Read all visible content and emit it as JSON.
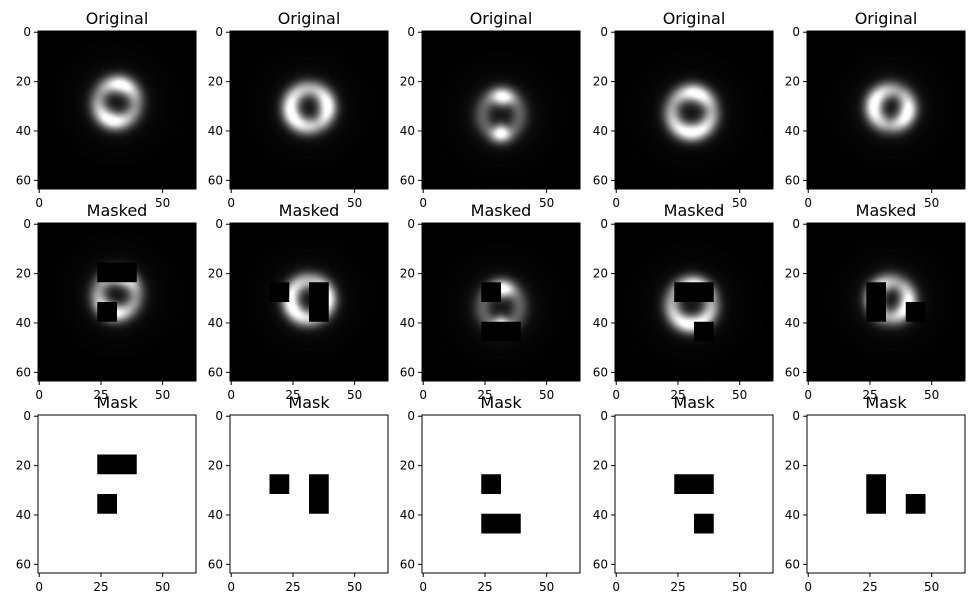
{
  "chart_data": [
    {
      "type": "heatmap",
      "row": "original",
      "title": "Original",
      "colormap": "gray",
      "xticks": [
        0,
        50
      ],
      "yticks": [
        0,
        20,
        40,
        60
      ],
      "xlim": [
        0,
        64
      ],
      "ylim": [
        64,
        0
      ],
      "ring": {
        "cx": 32,
        "cy": 29,
        "r": 7.5,
        "width": 2.5,
        "bright_arcs": [
          [
            40,
            110
          ],
          [
            210,
            290
          ]
        ],
        "contrast": 0.55
      }
    },
    {
      "type": "heatmap",
      "row": "original",
      "title": "Original",
      "colormap": "gray",
      "xticks": [
        0,
        50
      ],
      "yticks": [
        0,
        20,
        40,
        60
      ],
      "xlim": [
        0,
        64
      ],
      "ylim": [
        64,
        0
      ],
      "ring": {
        "cx": 32,
        "cy": 31,
        "r": 7.5,
        "width": 2.5,
        "bright_arcs": [
          [
            150,
            250
          ],
          [
            330,
            40
          ]
        ],
        "contrast": 0.4
      }
    },
    {
      "type": "heatmap",
      "row": "original",
      "title": "Original",
      "colormap": "gray",
      "xticks": [
        0,
        50
      ],
      "yticks": [
        0,
        20,
        40,
        60
      ],
      "xlim": [
        0,
        64
      ],
      "ylim": [
        64,
        0
      ],
      "ring": {
        "cx": 32,
        "cy": 34,
        "r": 7.5,
        "width": 2.5,
        "bright_arcs": [
          [
            60,
            110
          ],
          [
            250,
            290
          ]
        ],
        "contrast": 0.7
      }
    },
    {
      "type": "heatmap",
      "row": "original",
      "title": "Original",
      "colormap": "gray",
      "xticks": [
        0,
        50
      ],
      "yticks": [
        0,
        20,
        40,
        60
      ],
      "xlim": [
        0,
        64
      ],
      "ylim": [
        64,
        0
      ],
      "ring": {
        "cx": 31,
        "cy": 33,
        "r": 8,
        "width": 2.5,
        "bright_arcs": [
          [
            220,
            320
          ],
          [
            40,
            110
          ]
        ],
        "contrast": 0.5
      }
    },
    {
      "type": "heatmap",
      "row": "original",
      "title": "Original",
      "colormap": "gray",
      "xticks": [
        0,
        50
      ],
      "yticks": [
        0,
        20,
        40,
        60
      ],
      "xlim": [
        0,
        64
      ],
      "ylim": [
        64,
        0
      ],
      "ring": {
        "cx": 34,
        "cy": 31,
        "r": 7,
        "width": 2.5,
        "bright_arcs": [
          [
            120,
            220
          ],
          [
            300,
            20
          ]
        ],
        "contrast": 0.5
      }
    },
    {
      "type": "heatmap",
      "row": "masked",
      "title": "Masked",
      "colormap": "gray",
      "xticks": [
        0,
        25,
        50
      ],
      "yticks": [
        0,
        20,
        40,
        60
      ],
      "xlim": [
        0,
        64
      ],
      "ylim": [
        64,
        0
      ],
      "ring": {
        "cx": 32,
        "cy": 29,
        "r": 7.5,
        "width": 2.5,
        "bright_arcs": [
          [
            40,
            110
          ],
          [
            210,
            290
          ]
        ],
        "contrast": 0.55
      },
      "masked_regions": [
        [
          24,
          16,
          16,
          8
        ],
        [
          24,
          32,
          8,
          8
        ]
      ]
    },
    {
      "type": "heatmap",
      "row": "masked",
      "title": "Masked",
      "colormap": "gray",
      "xticks": [
        0,
        25,
        50
      ],
      "yticks": [
        0,
        20,
        40,
        60
      ],
      "xlim": [
        0,
        64
      ],
      "ylim": [
        64,
        0
      ],
      "ring": {
        "cx": 32,
        "cy": 31,
        "r": 7.5,
        "width": 2.5,
        "bright_arcs": [
          [
            150,
            250
          ],
          [
            330,
            40
          ]
        ],
        "contrast": 0.4
      },
      "masked_regions": [
        [
          16,
          24,
          8,
          8
        ],
        [
          32,
          24,
          8,
          16
        ]
      ]
    },
    {
      "type": "heatmap",
      "row": "masked",
      "title": "Masked",
      "colormap": "gray",
      "xticks": [
        0,
        25,
        50
      ],
      "yticks": [
        0,
        20,
        40,
        60
      ],
      "xlim": [
        0,
        64
      ],
      "ylim": [
        64,
        0
      ],
      "ring": {
        "cx": 32,
        "cy": 34,
        "r": 7.5,
        "width": 2.5,
        "bright_arcs": [
          [
            60,
            110
          ],
          [
            250,
            290
          ]
        ],
        "contrast": 0.7
      },
      "masked_regions": [
        [
          24,
          24,
          8,
          8
        ],
        [
          24,
          40,
          16,
          8
        ]
      ]
    },
    {
      "type": "heatmap",
      "row": "masked",
      "title": "Masked",
      "colormap": "gray",
      "xticks": [
        0,
        25,
        50
      ],
      "yticks": [
        0,
        20,
        40,
        60
      ],
      "xlim": [
        0,
        64
      ],
      "ylim": [
        64,
        0
      ],
      "ring": {
        "cx": 31,
        "cy": 33,
        "r": 8,
        "width": 2.5,
        "bright_arcs": [
          [
            220,
            320
          ],
          [
            40,
            110
          ]
        ],
        "contrast": 0.5
      },
      "masked_regions": [
        [
          24,
          24,
          16,
          8
        ],
        [
          32,
          40,
          8,
          8
        ]
      ]
    },
    {
      "type": "heatmap",
      "row": "masked",
      "title": "Masked",
      "colormap": "gray",
      "xticks": [
        0,
        25,
        50
      ],
      "yticks": [
        0,
        20,
        40,
        60
      ],
      "xlim": [
        0,
        64
      ],
      "ylim": [
        64,
        0
      ],
      "ring": {
        "cx": 34,
        "cy": 31,
        "r": 7,
        "width": 2.5,
        "bright_arcs": [
          [
            120,
            220
          ],
          [
            300,
            20
          ]
        ],
        "contrast": 0.5
      },
      "masked_regions": [
        [
          24,
          24,
          8,
          16
        ],
        [
          40,
          32,
          8,
          8
        ]
      ]
    },
    {
      "type": "heatmap",
      "row": "mask",
      "title": "Mask",
      "colormap": "gray",
      "xticks": [
        0,
        25,
        50
      ],
      "yticks": [
        0,
        20,
        40,
        60
      ],
      "xlim": [
        0,
        64
      ],
      "ylim": [
        64,
        0
      ],
      "masked_regions": [
        [
          24,
          16,
          16,
          8
        ],
        [
          24,
          32,
          8,
          8
        ]
      ]
    },
    {
      "type": "heatmap",
      "row": "mask",
      "title": "Mask",
      "colormap": "gray",
      "xticks": [
        0,
        25,
        50
      ],
      "yticks": [
        0,
        20,
        40,
        60
      ],
      "xlim": [
        0,
        64
      ],
      "ylim": [
        64,
        0
      ],
      "masked_regions": [
        [
          16,
          24,
          8,
          8
        ],
        [
          32,
          24,
          8,
          16
        ]
      ]
    },
    {
      "type": "heatmap",
      "row": "mask",
      "title": "Mask",
      "colormap": "gray",
      "xticks": [
        0,
        25,
        50
      ],
      "yticks": [
        0,
        20,
        40,
        60
      ],
      "xlim": [
        0,
        64
      ],
      "ylim": [
        64,
        0
      ],
      "masked_regions": [
        [
          24,
          24,
          8,
          8
        ],
        [
          24,
          40,
          16,
          8
        ]
      ]
    },
    {
      "type": "heatmap",
      "row": "mask",
      "title": "Mask",
      "colormap": "gray",
      "xticks": [
        0,
        25,
        50
      ],
      "yticks": [
        0,
        20,
        40,
        60
      ],
      "xlim": [
        0,
        64
      ],
      "ylim": [
        64,
        0
      ],
      "masked_regions": [
        [
          24,
          24,
          16,
          8
        ],
        [
          32,
          40,
          8,
          8
        ]
      ]
    },
    {
      "type": "heatmap",
      "row": "mask",
      "title": "Mask",
      "colormap": "gray",
      "xticks": [
        0,
        25,
        50
      ],
      "yticks": [
        0,
        20,
        40,
        60
      ],
      "xlim": [
        0,
        64
      ],
      "ylim": [
        64,
        0
      ],
      "masked_regions": [
        [
          24,
          24,
          8,
          16
        ],
        [
          40,
          32,
          8,
          8
        ]
      ]
    }
  ]
}
